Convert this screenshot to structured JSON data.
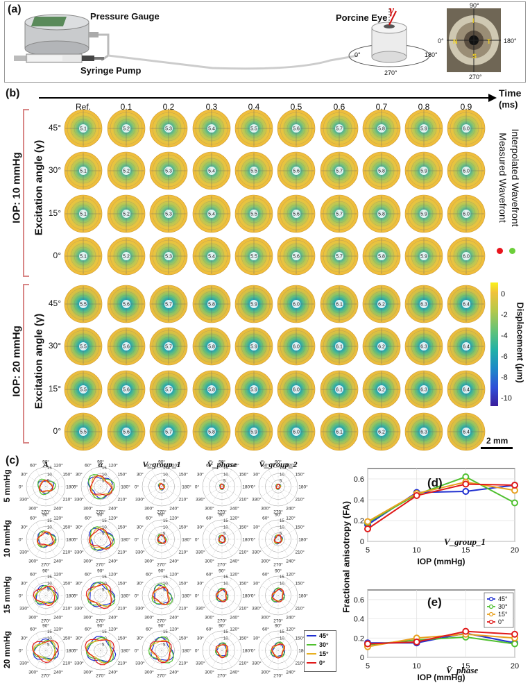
{
  "panel_a": {
    "label": "(a)",
    "pressure_gauge": "Pressure Gauge",
    "syringe_pump": "Syringe Pump",
    "porcine_eye": "Porcine Eye",
    "gamma": "γ",
    "holder_angles": {
      "a0": "0°",
      "a180": "180°",
      "a270": "270°"
    },
    "photo_angles": {
      "a90": "90°",
      "a0": "0°",
      "a180": "180°",
      "a270": "270°"
    },
    "photo_letters": [
      "I",
      "N",
      "T",
      "S"
    ]
  },
  "panel_b": {
    "label": "(b)",
    "time_label": "Time",
    "time_unit": "(ms)",
    "time_ticks": [
      "Ref.",
      "0.1",
      "0.2",
      "0.3",
      "0.4",
      "0.5",
      "0.6",
      "0.7",
      "0.8",
      "0.9"
    ],
    "group1_label": "IOP: 10 mmHg",
    "group2_label": "IOP: 20 mmHg",
    "excitation_label": "Excitation angle (γ)",
    "angle_rows": [
      "45°",
      "30°",
      "15°",
      "0°"
    ],
    "group1_center_labels": [
      "5.1",
      "5.2",
      "5.3",
      "5.4",
      "5.5",
      "5.6",
      "5.7",
      "5.8",
      "5.9",
      "6.0"
    ],
    "group2_center_labels": [
      "5.5",
      "5.6",
      "5.7",
      "5.8",
      "5.9",
      "6.0",
      "6.1",
      "6.2",
      "6.3",
      "6.4"
    ],
    "legend_measured": "Measured Wavefront",
    "legend_interpolated": "Interpolated Wavefront",
    "legend_colors": {
      "measured": "#e8141c",
      "interpolated": "#6ccf3a"
    },
    "colorbar_label": "Displacement (μm)",
    "colorbar_ticks": [
      "0",
      "-2",
      "-4",
      "-6",
      "-8",
      "-10"
    ],
    "scale_bar": "2 mm"
  },
  "panel_c": {
    "label": "(c)",
    "columns": [
      "A",
      "α",
      "V_group_1",
      "V̄_phase",
      "V̄_group_2"
    ],
    "rows": [
      "5 mmHg",
      "10 mmHg",
      "15 mmHg",
      "20 mmHg"
    ],
    "angle_labels": [
      "90°",
      "120°",
      "150°",
      "180°",
      "210°",
      "240°",
      "270°",
      "300°",
      "330°",
      "0°",
      "30°",
      "60°"
    ],
    "radial_labels": [
      "5",
      "10",
      "15"
    ],
    "legend": [
      "45°",
      "30°",
      "15°",
      "0°"
    ],
    "legend_colors": [
      "#1f2fd0",
      "#4fc02f",
      "#e8b020",
      "#e01a1a"
    ]
  },
  "panel_d": {
    "label": "(d)",
    "annotation": "V_group_1"
  },
  "panel_e": {
    "label": "(e)",
    "annotation": "V̄_phase"
  },
  "shared_ylabel": "Fractional anisotropy (FA)",
  "chart_data": [
    {
      "type": "line",
      "title": "V_group_1",
      "xlabel": "IOP (mmHg)",
      "ylabel": "Fractional anisotropy (FA)",
      "x": [
        5,
        10,
        15,
        20
      ],
      "ylim": [
        0,
        0.7
      ],
      "yticks": [
        "0",
        "0.2",
        "0.4",
        "0.6"
      ],
      "xticks": [
        "5",
        "10",
        "15",
        "20"
      ],
      "series": [
        {
          "name": "45°",
          "color": "#1f2fd0",
          "values": [
            0.16,
            0.47,
            0.48,
            0.54
          ]
        },
        {
          "name": "30°",
          "color": "#4fc02f",
          "values": [
            0.18,
            0.45,
            0.62,
            0.37
          ]
        },
        {
          "name": "15°",
          "color": "#e8a020",
          "values": [
            0.19,
            0.46,
            0.57,
            0.49
          ]
        },
        {
          "name": "0°",
          "color": "#e01a1a",
          "values": [
            0.12,
            0.44,
            0.55,
            0.54
          ]
        }
      ]
    },
    {
      "type": "line",
      "title": "V̄_phase",
      "xlabel": "IOP (mmHg)",
      "ylabel": "Fractional anisotropy (FA)",
      "x": [
        5,
        10,
        15,
        20
      ],
      "ylim": [
        0,
        0.7
      ],
      "yticks": [
        "0",
        "0.2",
        "0.4",
        "0.6"
      ],
      "xticks": [
        "5",
        "10",
        "15",
        "20"
      ],
      "series": [
        {
          "name": "45°",
          "color": "#1f2fd0",
          "values": [
            0.15,
            0.15,
            0.25,
            0.15
          ]
        },
        {
          "name": "30°",
          "color": "#4fc02f",
          "values": [
            0.13,
            0.18,
            0.21,
            0.14
          ]
        },
        {
          "name": "15°",
          "color": "#e8a020",
          "values": [
            0.11,
            0.2,
            0.24,
            0.2
          ]
        },
        {
          "name": "0°",
          "color": "#e01a1a",
          "values": [
            0.14,
            0.16,
            0.27,
            0.24
          ]
        }
      ]
    }
  ]
}
